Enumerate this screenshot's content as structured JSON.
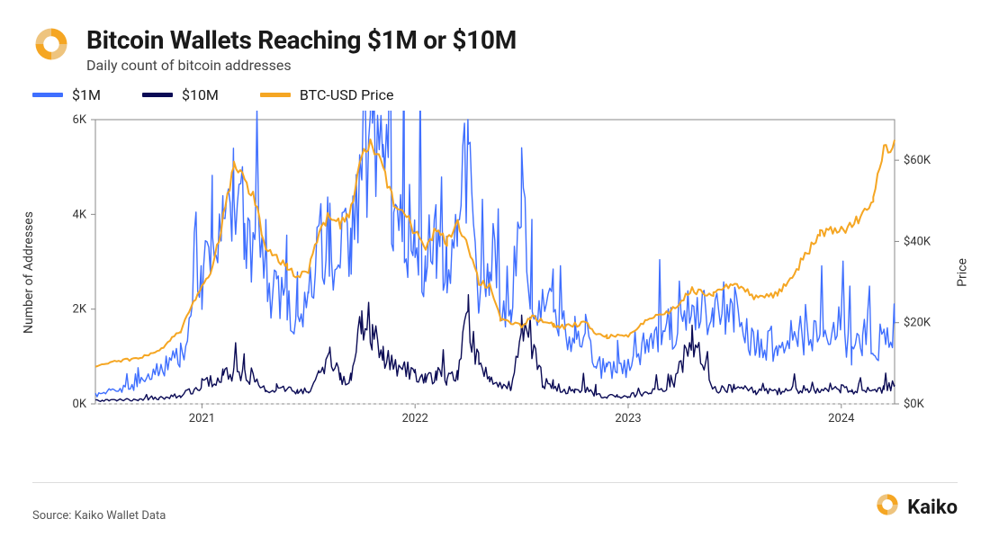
{
  "header": {
    "title": "Bitcoin Wallets Reaching $1M or $10M",
    "subtitle": "Daily count of bitcoin addresses"
  },
  "legend": {
    "s1": "$1M",
    "s2": "$10M",
    "s3": "BTC-USD Price"
  },
  "footer": {
    "source": "Source: Kaiko Wallet Data",
    "brand": "Kaiko"
  },
  "chart": {
    "type": "line",
    "background_color": "#ffffff",
    "grid_color": "#dddddd",
    "zero_line_dash": "3,3",
    "axis_color": "#888888",
    "title_fontsize": 28,
    "subtitle_fontsize": 16,
    "tick_fontsize": 13,
    "label_fontsize": 14,
    "line_width": 1.4,
    "price_line_width": 2.0,
    "left_axis": {
      "label": "Number of Addresses",
      "min": 0,
      "max": 6000,
      "ticks": [
        0,
        2000,
        4000,
        6000
      ],
      "tick_labels": [
        "0K",
        "2K",
        "4K",
        "6K"
      ]
    },
    "right_axis": {
      "label": "Price",
      "min": 0,
      "max": 70000,
      "ticks": [
        0,
        20000,
        40000,
        60000
      ],
      "tick_labels": [
        "$0K",
        "$20K",
        "$40K",
        "$60K"
      ]
    },
    "x_axis": {
      "min": 2020.5,
      "max": 2024.25,
      "ticks": [
        2021,
        2022,
        2023,
        2024
      ],
      "tick_labels": [
        "2021",
        "2022",
        "2023",
        "2024"
      ]
    },
    "series": {
      "one_million": {
        "color": "#3f6fff",
        "axis": "left"
      },
      "ten_million": {
        "color": "#0b0b55",
        "axis": "left"
      },
      "btc_price": {
        "color": "#f5a623",
        "axis": "right"
      }
    },
    "data": {
      "x": [
        2020.5,
        2020.6,
        2020.7,
        2020.8,
        2020.9,
        2021.0,
        2021.05,
        2021.1,
        2021.15,
        2021.2,
        2021.25,
        2021.3,
        2021.35,
        2021.4,
        2021.45,
        2021.5,
        2021.55,
        2021.6,
        2021.65,
        2021.7,
        2021.75,
        2021.8,
        2021.85,
        2021.9,
        2021.95,
        2022.0,
        2022.05,
        2022.1,
        2022.15,
        2022.2,
        2022.25,
        2022.3,
        2022.35,
        2022.4,
        2022.45,
        2022.5,
        2022.55,
        2022.6,
        2022.65,
        2022.7,
        2022.75,
        2022.8,
        2022.85,
        2022.9,
        2022.95,
        2023.0,
        2023.1,
        2023.2,
        2023.3,
        2023.4,
        2023.5,
        2023.6,
        2023.7,
        2023.8,
        2023.9,
        2024.0,
        2024.05,
        2024.1,
        2024.15,
        2024.2,
        2024.25
      ],
      "btc_price": [
        9200,
        10500,
        11200,
        13000,
        18000,
        29000,
        33000,
        46000,
        58000,
        55000,
        50000,
        38000,
        36000,
        34000,
        31000,
        33000,
        42000,
        47000,
        44000,
        48000,
        61000,
        64000,
        58000,
        49000,
        47000,
        42000,
        38000,
        43000,
        40000,
        45000,
        39000,
        30000,
        29000,
        21000,
        20000,
        19000,
        22000,
        20000,
        19500,
        19000,
        19500,
        20000,
        17000,
        16500,
        16800,
        17000,
        21000,
        23000,
        28000,
        27000,
        30000,
        26000,
        27000,
        34000,
        42000,
        43000,
        44000,
        47000,
        51000,
        62000,
        65000
      ],
      "one_million": [
        200,
        300,
        400,
        700,
        1000,
        2400,
        3200,
        3800,
        4600,
        3900,
        3400,
        2600,
        2200,
        2000,
        1800,
        2100,
        3200,
        3600,
        3000,
        3400,
        5200,
        5800,
        5200,
        4300,
        3800,
        3600,
        3000,
        3400,
        3100,
        3600,
        5600,
        2600,
        2400,
        2000,
        1800,
        4200,
        2400,
        2200,
        2000,
        1500,
        1400,
        1600,
        800,
        700,
        750,
        800,
        1400,
        1600,
        2000,
        1800,
        1900,
        1200,
        1300,
        1500,
        1400,
        1600,
        1100,
        1300,
        1200,
        1400,
        1700
      ],
      "ten_million": [
        70,
        80,
        90,
        120,
        180,
        380,
        500,
        620,
        700,
        600,
        520,
        350,
        300,
        280,
        260,
        300,
        560,
        1000,
        520,
        620,
        2000,
        1500,
        1100,
        800,
        700,
        650,
        520,
        600,
        560,
        640,
        1800,
        800,
        500,
        420,
        380,
        1600,
        1350,
        450,
        400,
        300,
        280,
        300,
        180,
        150,
        160,
        170,
        260,
        300,
        1400,
        320,
        340,
        260,
        270,
        300,
        290,
        320,
        250,
        280,
        270,
        300,
        400
      ]
    }
  },
  "colors": {
    "logo_primary": "#f5a623",
    "logo_shadow": "#d38a12"
  }
}
